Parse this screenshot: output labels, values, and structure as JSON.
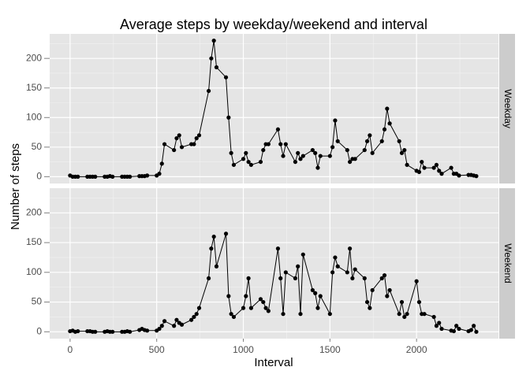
{
  "chart_data": {
    "type": "line",
    "facet": true,
    "title": "Average steps by weekday/weekend and interval",
    "xlabel": "Interval",
    "ylabel": "Number of steps",
    "x": [
      0,
      15,
      30,
      45,
      100,
      115,
      130,
      145,
      200,
      215,
      230,
      245,
      300,
      315,
      330,
      345,
      400,
      415,
      430,
      445,
      500,
      515,
      530,
      545,
      600,
      615,
      630,
      645,
      700,
      715,
      730,
      745,
      800,
      815,
      830,
      845,
      900,
      915,
      930,
      945,
      1000,
      1015,
      1030,
      1045,
      1100,
      1115,
      1130,
      1145,
      1200,
      1215,
      1230,
      1245,
      1300,
      1315,
      1330,
      1345,
      1400,
      1415,
      1430,
      1445,
      1500,
      1515,
      1530,
      1545,
      1600,
      1615,
      1630,
      1645,
      1700,
      1715,
      1730,
      1745,
      1800,
      1815,
      1830,
      1845,
      1900,
      1915,
      1930,
      1945,
      2000,
      2015,
      2030,
      2045,
      2100,
      2115,
      2130,
      2145,
      2200,
      2215,
      2230,
      2245,
      2300,
      2315,
      2330,
      2345
    ],
    "series": [
      {
        "name": "Weekday",
        "color": "#000000",
        "values": [
          2,
          0,
          0,
          0,
          0,
          0,
          0,
          0,
          0,
          0,
          1,
          0,
          0,
          0,
          0,
          0,
          1,
          1,
          1,
          2,
          2,
          5,
          22,
          55,
          45,
          65,
          70,
          50,
          55,
          55,
          65,
          70,
          145,
          200,
          230,
          185,
          168,
          100,
          40,
          20,
          30,
          40,
          25,
          20,
          25,
          45,
          55,
          55,
          80,
          55,
          35,
          55,
          25,
          40,
          30,
          35,
          45,
          40,
          15,
          35,
          35,
          50,
          95,
          60,
          45,
          25,
          30,
          30,
          45,
          60,
          70,
          40,
          60,
          80,
          115,
          90,
          60,
          40,
          45,
          20,
          10,
          8,
          25,
          15,
          15,
          20,
          10,
          5,
          15,
          5,
          5,
          2,
          3,
          3,
          2,
          1
        ]
      },
      {
        "name": "Weekend",
        "color": "#000000",
        "values": [
          1,
          2,
          0,
          1,
          1,
          1,
          0,
          0,
          0,
          1,
          0,
          0,
          0,
          0,
          1,
          0,
          3,
          5,
          3,
          2,
          2,
          5,
          10,
          18,
          10,
          20,
          15,
          12,
          20,
          25,
          30,
          40,
          90,
          140,
          160,
          110,
          165,
          60,
          30,
          25,
          40,
          60,
          90,
          40,
          55,
          50,
          40,
          35,
          140,
          90,
          30,
          100,
          90,
          110,
          30,
          130,
          70,
          65,
          40,
          60,
          30,
          100,
          125,
          110,
          100,
          140,
          90,
          105,
          90,
          50,
          40,
          70,
          90,
          95,
          60,
          70,
          30,
          50,
          25,
          30,
          85,
          50,
          30,
          30,
          25,
          10,
          15,
          5,
          2,
          1,
          10,
          5,
          1,
          3,
          10,
          0
        ]
      }
    ],
    "xlim": [
      -117.75,
      2472.75
    ],
    "ylim": [
      -11.5,
      241.5
    ],
    "xticks": [
      0,
      500,
      1000,
      1500,
      2000
    ],
    "yticks": [
      0,
      50,
      100,
      150,
      200
    ],
    "minor_xticks": [
      250,
      750,
      1250,
      1750,
      2250
    ],
    "minor_yticks": [
      25,
      75,
      125,
      175,
      225
    ],
    "grid": true
  }
}
